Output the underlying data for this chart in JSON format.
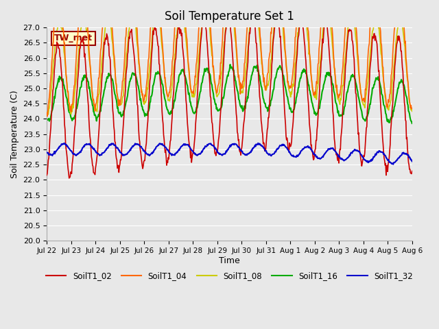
{
  "title": "Soil Temperature Set 1",
  "xlabel": "Time",
  "ylabel": "Soil Temperature (C)",
  "ylim": [
    20.0,
    27.0
  ],
  "yticks": [
    20.0,
    20.5,
    21.0,
    21.5,
    22.0,
    22.5,
    23.0,
    23.5,
    24.0,
    24.5,
    25.0,
    25.5,
    26.0,
    26.5,
    27.0
  ],
  "background_color": "#e8e8e8",
  "plot_bg_color": "#e8e8e8",
  "annotation_label": "TW_met",
  "annotation_bg": "#ffffcc",
  "annotation_fg": "#990000",
  "colors": {
    "SoilT1_02": "#cc0000",
    "SoilT1_04": "#ff6600",
    "SoilT1_08": "#cccc00",
    "SoilT1_16": "#00aa00",
    "SoilT1_32": "#0000cc"
  },
  "legend_labels": [
    "SoilT1_02",
    "SoilT1_04",
    "SoilT1_08",
    "SoilT1_16",
    "SoilT1_32"
  ],
  "xtick_labels": [
    "Jul 22",
    "Jul 23",
    "Jul 24",
    "Jul 25",
    "Jul 26",
    "Jul 27",
    "Jul 28",
    "Jul 29",
    "Jul 30",
    "Jul 31",
    "Aug 1",
    "Aug 2",
    "Aug 3",
    "Aug 4",
    "Aug 5",
    "Aug 6"
  ],
  "n_days": 15,
  "points_per_day": 48
}
